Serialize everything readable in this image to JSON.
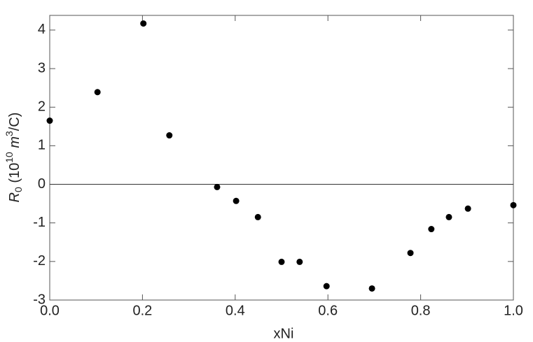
{
  "chart_data": {
    "type": "scatter",
    "x_label": "xNi",
    "y_label_parts": [
      "R",
      "0",
      " (10",
      "10",
      " m",
      "3",
      "/C)"
    ],
    "x": [
      0.0,
      0.103,
      0.202,
      0.258,
      0.361,
      0.402,
      0.449,
      0.5,
      0.539,
      0.597,
      0.695,
      0.778,
      0.823,
      0.861,
      0.902,
      1.0
    ],
    "values": [
      1.65,
      2.39,
      4.17,
      1.27,
      -0.07,
      -0.43,
      -0.85,
      -2.01,
      -2.01,
      -2.64,
      -2.7,
      -1.78,
      -1.16,
      -0.85,
      -0.63,
      -0.54
    ],
    "color": "#000000",
    "xlim": [
      0,
      1
    ],
    "ylim": [
      -3,
      4.38
    ],
    "xticks": [
      {
        "value": 0,
        "label": "0.0"
      },
      0.2,
      0.4,
      0.6,
      0.8,
      {
        "value": 1,
        "label": "1.0"
      }
    ],
    "yticks": [
      -3,
      -2,
      -1,
      0,
      1,
      2,
      3,
      4
    ]
  }
}
